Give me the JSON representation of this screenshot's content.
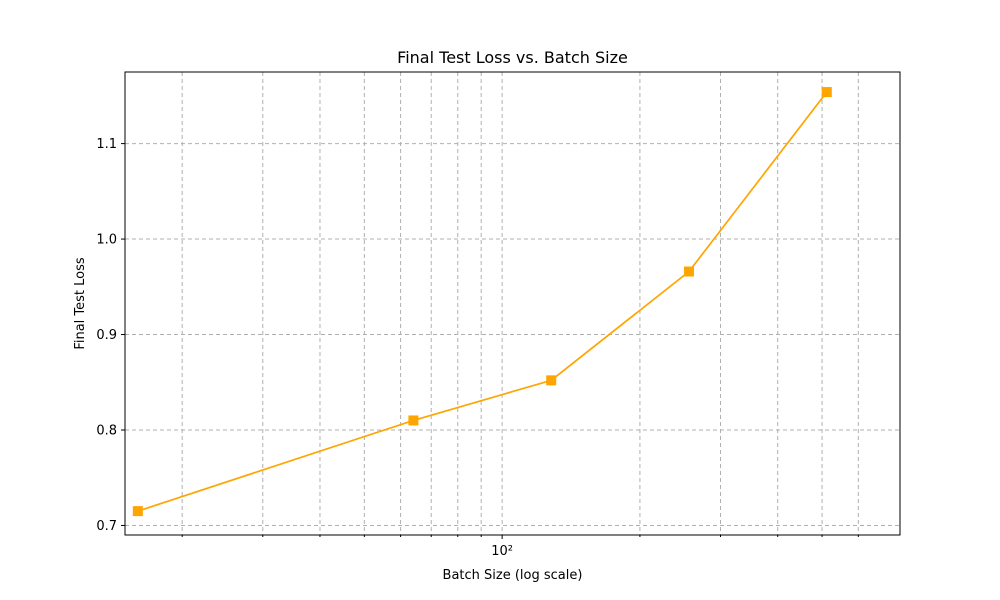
{
  "chart_data": {
    "type": "line",
    "title": "Final Test Loss vs. Batch Size",
    "xlabel": "Batch Size (log scale)",
    "ylabel": "Final Test Loss",
    "x_scale": "log",
    "xlim": [
      15,
      740
    ],
    "ylim": [
      0.69,
      1.175
    ],
    "x_major_ticks": [
      100
    ],
    "x_major_tick_labels": [
      "10²"
    ],
    "x_minor_ticks": [
      20,
      30,
      40,
      50,
      60,
      70,
      80,
      90,
      200,
      300,
      400,
      500,
      600
    ],
    "y_ticks": [
      0.7,
      0.8,
      0.9,
      1.0,
      1.1
    ],
    "y_tick_labels": [
      "0.7",
      "0.8",
      "0.9",
      "1.0",
      "1.1"
    ],
    "grid": true,
    "series": [
      {
        "color": "#FFA500",
        "marker": "square",
        "x": [
          16,
          64,
          128,
          256,
          512
        ],
        "y": [
          0.715,
          0.81,
          0.852,
          0.966,
          1.154
        ]
      }
    ]
  }
}
